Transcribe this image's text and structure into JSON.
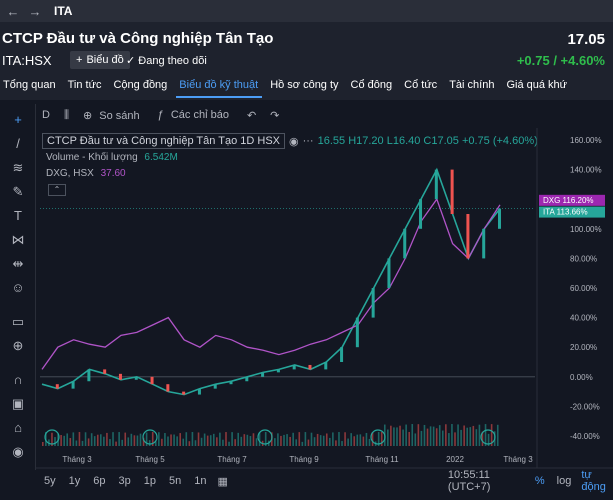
{
  "topbar": {
    "ticker": "ITA"
  },
  "header": {
    "company_name": "CTCP Đầu tư và Công nghiệp Tân Tạo",
    "ticker_exchange": "ITA:HSX",
    "add_chart_label": "Biểu đồ",
    "follow_label": "Đang theo dõi",
    "price": "17.05",
    "change": "+0.75 / +4.60%"
  },
  "tabs": [
    "Tổng quan",
    "Tin tức",
    "Cộng đồng",
    "Biểu đồ kỹ thuật",
    "Hồ sơ công ty",
    "Cổ đông",
    "Cổ tức",
    "Tài chính",
    "Giá quá khứ"
  ],
  "chart_toolbar": {
    "interval": "D",
    "compare": "So sánh",
    "indicators": "Các chỉ báo"
  },
  "legend": {
    "title": "CTCP Đầu tư và Công nghiệp Tân Tạo  1D  HSX",
    "ohlc": "16.55 H17.20 L16.40 C17.05 +0.75 (+4.60%)",
    "volume_label": "Volume - Khối lượng",
    "volume_value": "6.542M",
    "compare_label": "DXG, HSX",
    "compare_value": "37.60"
  },
  "axis": {
    "ticks": [
      "160.00%",
      "140.00%",
      "120.00%",
      "100.00%",
      "80.00%",
      "60.00%",
      "40.00%",
      "20.00%",
      "0.00%",
      "-20.00%",
      "-40.00%"
    ],
    "months": [
      "Tháng 3",
      "Tháng 5",
      "Tháng 7",
      "Tháng 9",
      "Tháng 11",
      "2022",
      "Tháng 3"
    ],
    "dxg_badge": "116.20%",
    "ita_badge": "113.66%"
  },
  "bottom": {
    "ranges": [
      "5y",
      "1y",
      "6p",
      "3p",
      "1p",
      "5n",
      "1n"
    ],
    "time": "10:55:11 (UTC+7)",
    "pct": "%",
    "log": "log",
    "auto": "tự động"
  },
  "colors": {
    "up": "#26a69a",
    "down": "#ef5350",
    "compare": "#9c27b0",
    "accent": "#4c9df5"
  },
  "chart_data": {
    "type": "line",
    "ylim": [
      -40,
      160
    ],
    "series": [
      {
        "name": "ITA",
        "values": [
          -5,
          -8,
          -3,
          5,
          2,
          -2,
          0,
          -5,
          -10,
          -12,
          -8,
          -5,
          -3,
          0,
          3,
          5,
          8,
          5,
          10,
          20,
          40,
          60,
          80,
          100,
          120,
          140,
          110,
          80,
          100,
          113.66
        ]
      },
      {
        "name": "DXG",
        "values": [
          5,
          20,
          25,
          22,
          20,
          28,
          30,
          35,
          40,
          25,
          20,
          28,
          25,
          20,
          18,
          15,
          18,
          22,
          25,
          30,
          35,
          50,
          60,
          80,
          105,
          120,
          90,
          80,
          100,
          116.2
        ]
      }
    ]
  }
}
